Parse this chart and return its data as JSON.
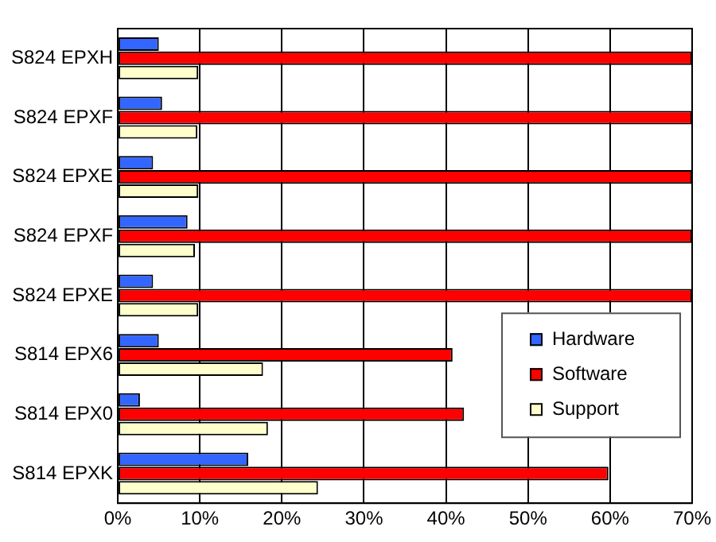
{
  "chart_data": {
    "type": "bar",
    "orientation": "horizontal",
    "categories": [
      "S824 EPXH",
      "S824 EPXF",
      "S824 EPXE",
      "S824 EPXF",
      "S824 EPXE",
      "S814 EPX6",
      "S814 EPX0",
      "S814 EPXK"
    ],
    "series": [
      {
        "name": "Hardware",
        "color": "#3366ff",
        "values": [
          5.0,
          5.4,
          4.3,
          8.5,
          4.3,
          5.0,
          2.7,
          15.9
        ]
      },
      {
        "name": "Software",
        "color": "#ff0000",
        "values": [
          70,
          70,
          70,
          70,
          70,
          40.8,
          42.2,
          59.8
        ]
      },
      {
        "name": "Support",
        "color": "#ffffcc",
        "values": [
          9.8,
          9.7,
          9.8,
          9.4,
          9.8,
          17.7,
          18.3,
          24.4
        ]
      }
    ],
    "xlim": [
      0,
      70
    ],
    "xticks": [
      {
        "value": 0,
        "label": "0%"
      },
      {
        "value": 10,
        "label": "10%"
      },
      {
        "value": 20,
        "label": "20%"
      },
      {
        "value": 30,
        "label": "30%"
      },
      {
        "value": 40,
        "label": "40%"
      },
      {
        "value": 50,
        "label": "50%"
      },
      {
        "value": 60,
        "label": "60%"
      },
      {
        "value": 70,
        "label": "70%"
      }
    ],
    "grid": "x",
    "legend": "bottom right"
  }
}
